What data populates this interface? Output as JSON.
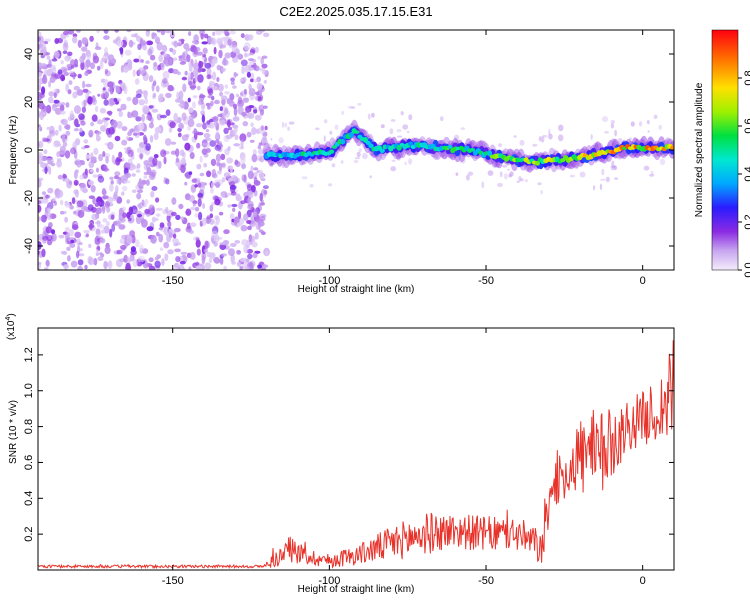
{
  "title": "C2E2.2025.035.17.15.E31",
  "chart_data": [
    {
      "type": "heatmap",
      "xlabel": "Height of straight line (km)",
      "ylabel": "Frequency (Hz)",
      "xlim": [
        -193,
        10
      ],
      "ylim": [
        -50,
        50
      ],
      "xticks": [
        -150,
        -100,
        -50,
        0
      ],
      "yticks": [
        -40,
        -20,
        0,
        20,
        40
      ],
      "colorbar": {
        "label": "Normalized spectral amplitude",
        "range": [
          0,
          1
        ],
        "ticks": [
          0.0,
          0.2,
          0.4,
          0.6,
          0.8
        ]
      },
      "noise_region": {
        "x_from": -193,
        "x_to": -120,
        "typical_amplitude": 0.2
      },
      "ridge": [
        {
          "x": -120,
          "freq": -2,
          "amp": 0.45
        },
        {
          "x": -110,
          "freq": -2,
          "amp": 0.55
        },
        {
          "x": -100,
          "freq": -1,
          "amp": 0.6
        },
        {
          "x": -92,
          "freq": 8,
          "amp": 0.55
        },
        {
          "x": -85,
          "freq": 0,
          "amp": 0.55
        },
        {
          "x": -75,
          "freq": 2,
          "amp": 0.55
        },
        {
          "x": -65,
          "freq": 1,
          "amp": 0.6
        },
        {
          "x": -55,
          "freq": 0,
          "amp": 0.6
        },
        {
          "x": -45,
          "freq": -3,
          "amp": 0.7
        },
        {
          "x": -35,
          "freq": -5,
          "amp": 0.75
        },
        {
          "x": -25,
          "freq": -4,
          "amp": 0.8
        },
        {
          "x": -15,
          "freq": -2,
          "amp": 0.85
        },
        {
          "x": -5,
          "freq": 1,
          "amp": 0.95
        },
        {
          "x": 5,
          "freq": 1,
          "amp": 0.95
        },
        {
          "x": 10,
          "freq": 1,
          "amp": 0.9
        }
      ]
    },
    {
      "type": "line",
      "xlabel": "Height of straight line (km)",
      "ylabel": "SNR (10 * v/v)",
      "yscale_label": "(x10",
      "yscale_exponent": "4",
      "yscale_close": ")",
      "xlim": [
        -193,
        10
      ],
      "ylim": [
        0,
        1.35
      ],
      "xticks": [
        -150,
        -100,
        -50,
        0
      ],
      "yticks": [
        0.2,
        0.4,
        0.6,
        0.8,
        1.0,
        1.2
      ],
      "series": [
        {
          "color": "#e8332b",
          "envelope": [
            {
              "x": -193,
              "base": 0.02,
              "amp": 0.008
            },
            {
              "x": -121,
              "base": 0.02,
              "amp": 0.008
            },
            {
              "x": -118,
              "base": 0.05,
              "amp": 0.04
            },
            {
              "x": -112,
              "base": 0.12,
              "amp": 0.08
            },
            {
              "x": -108,
              "base": 0.08,
              "amp": 0.05
            },
            {
              "x": -100,
              "base": 0.05,
              "amp": 0.04
            },
            {
              "x": -90,
              "base": 0.09,
              "amp": 0.06
            },
            {
              "x": -80,
              "base": 0.15,
              "amp": 0.1
            },
            {
              "x": -70,
              "base": 0.2,
              "amp": 0.12
            },
            {
              "x": -60,
              "base": 0.22,
              "amp": 0.1
            },
            {
              "x": -50,
              "base": 0.2,
              "amp": 0.1
            },
            {
              "x": -40,
              "base": 0.2,
              "amp": 0.1
            },
            {
              "x": -32,
              "base": 0.12,
              "amp": 0.1
            },
            {
              "x": -29,
              "base": 0.46,
              "amp": 0.12
            },
            {
              "x": -24,
              "base": 0.55,
              "amp": 0.15
            },
            {
              "x": -20,
              "base": 0.65,
              "amp": 0.22
            },
            {
              "x": -15,
              "base": 0.6,
              "amp": 0.3
            },
            {
              "x": -10,
              "base": 0.7,
              "amp": 0.2
            },
            {
              "x": -5,
              "base": 0.8,
              "amp": 0.15
            },
            {
              "x": 0,
              "base": 0.85,
              "amp": 0.15
            },
            {
              "x": 5,
              "base": 0.88,
              "amp": 0.18
            },
            {
              "x": 8,
              "base": 0.95,
              "amp": 0.25
            },
            {
              "x": 10,
              "base": 1.0,
              "amp": 0.3
            }
          ]
        }
      ]
    }
  ]
}
